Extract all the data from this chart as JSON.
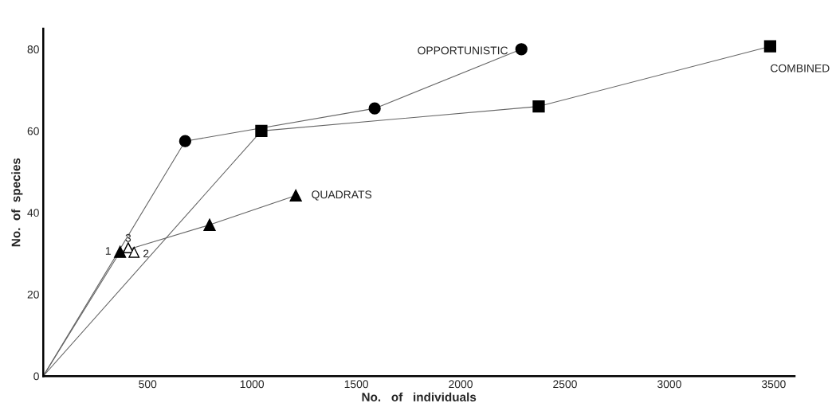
{
  "chart_data": {
    "type": "line",
    "xlabel": "No.   of   individuals",
    "ylabel": "No.  of  species",
    "xlim": [
      0,
      3600
    ],
    "ylim": [
      0,
      85
    ],
    "xticks": [
      500,
      1000,
      1500,
      2000,
      2500,
      3000,
      3500
    ],
    "yticks": [
      0,
      20,
      40,
      60,
      80
    ],
    "grid": false,
    "legend": false,
    "series": [
      {
        "name": "OPPORTUNISTIC",
        "color": "#000000",
        "marker": "circle",
        "x": [
          0,
          680,
          1588,
          2291
        ],
        "values": [
          0,
          57.5,
          65.5,
          80
        ]
      },
      {
        "name": "COMBINED",
        "color": "#000000",
        "marker": "square",
        "x": [
          0,
          1045,
          2374,
          3483
        ],
        "values": [
          0,
          60,
          66,
          80.7
        ]
      },
      {
        "name": "QUADRATS",
        "color": "#000000",
        "marker": "triangle",
        "x": [
          0,
          368,
          797,
          1210
        ],
        "values": [
          0,
          30.4,
          37,
          44.2
        ]
      },
      {
        "type": "scatter",
        "color": "#ffffff",
        "marker": "triangle",
        "x": [
          407,
          435
        ],
        "values": [
          31.4,
          30.3
        ]
      }
    ],
    "annotations": [
      {
        "text": "1",
        "x": 368,
        "y": 30.4
      },
      {
        "text": "2",
        "x": 435,
        "y": 30.3
      },
      {
        "text": "3",
        "x": 407,
        "y": 31.4
      }
    ]
  }
}
